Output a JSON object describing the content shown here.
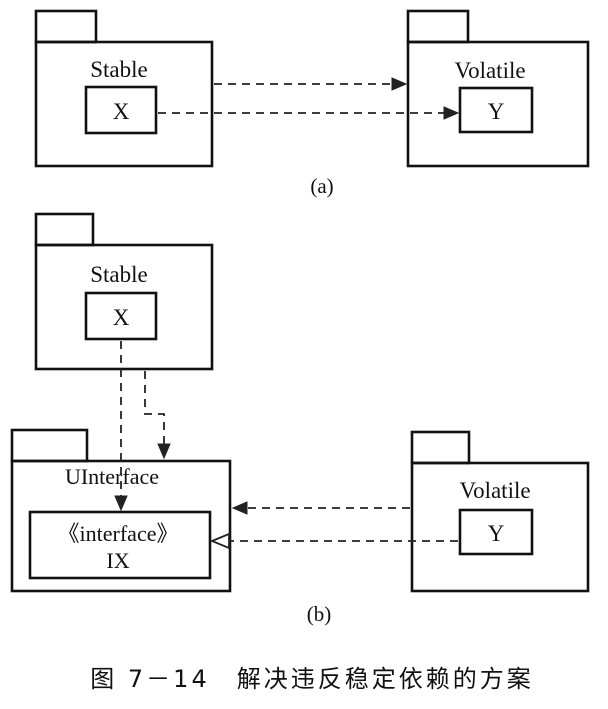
{
  "diagram_a": {
    "stable_package": "Stable",
    "stable_class": "X",
    "volatile_package": "Volatile",
    "volatile_class": "Y",
    "caption": "(a)"
  },
  "diagram_b": {
    "stable_package": "Stable",
    "stable_class": "X",
    "interface_package": "UInterface",
    "interface_stereotype": "《interface》",
    "interface_class": "IX",
    "volatile_package": "Volatile",
    "volatile_class": "Y",
    "caption": "(b)"
  },
  "figure_caption": "图 7－14　解决违反稳定依赖的方案"
}
